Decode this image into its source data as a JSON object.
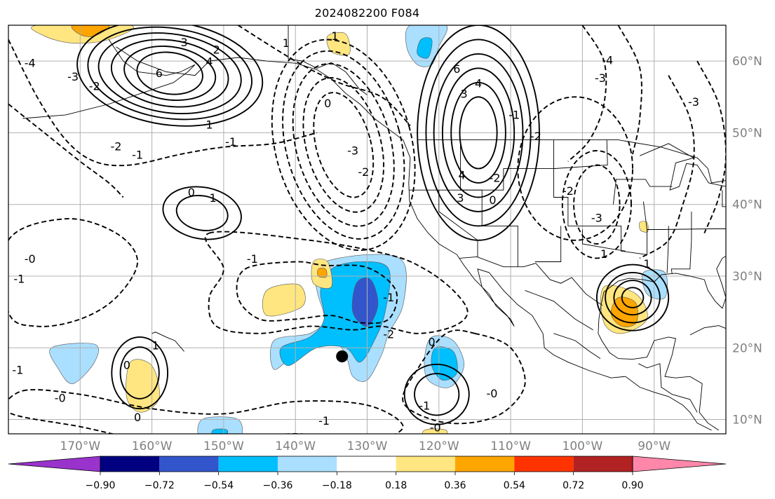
{
  "title": "2024082200 F084",
  "map": {
    "lon_range": [
      -180,
      -80
    ],
    "lat_range": [
      8,
      65
    ],
    "lat_ticks": [
      {
        "value": 60,
        "label": "60°N"
      },
      {
        "value": 50,
        "label": "50°N"
      },
      {
        "value": 40,
        "label": "40°N"
      },
      {
        "value": 30,
        "label": "30°N"
      },
      {
        "value": 20,
        "label": "20°N"
      },
      {
        "value": 10,
        "label": "10°N"
      }
    ],
    "lon_ticks": [
      {
        "value": -170,
        "label": "170°W"
      },
      {
        "value": -160,
        "label": "160°W"
      },
      {
        "value": -150,
        "label": "150°W"
      },
      {
        "value": -140,
        "label": "140°W"
      },
      {
        "value": -130,
        "label": "130°W"
      },
      {
        "value": -120,
        "label": "120°W"
      },
      {
        "value": -110,
        "label": "110°W"
      },
      {
        "value": -100,
        "label": "100°W"
      },
      {
        "value": -90,
        "label": "90°W"
      }
    ],
    "storm_marker": {
      "lon": -133.5,
      "lat": 18.8
    }
  },
  "colorbar": {
    "colors": [
      "#9933cc",
      "#000080",
      "#3355cc",
      "#00bfff",
      "#aadfff",
      "#ffffff",
      "#ffe680",
      "#ffa500",
      "#ff3300",
      "#b22222",
      "#ff88aa"
    ],
    "tick_labels": [
      "−0.90",
      "−0.72",
      "−0.54",
      "−0.36",
      "−0.18",
      "0.18",
      "0.36",
      "0.54",
      "0.72",
      "0.90"
    ]
  },
  "contour_labels": [
    {
      "text": "3",
      "lon": -155.5,
      "lat": 62.5
    },
    {
      "text": "2",
      "lon": -151,
      "lat": 61.5
    },
    {
      "text": "6",
      "lon": -159,
      "lat": 58.2
    },
    {
      "text": "4",
      "lon": -152,
      "lat": 59.8
    },
    {
      "text": "-4",
      "lon": -177,
      "lat": 59.6
    },
    {
      "text": "-3",
      "lon": -171,
      "lat": 57.7
    },
    {
      "text": "-2",
      "lon": -168,
      "lat": 56.4
    },
    {
      "text": "-2",
      "lon": -165,
      "lat": 48
    },
    {
      "text": "-1",
      "lon": -162,
      "lat": 46.8
    },
    {
      "text": "1",
      "lon": -152,
      "lat": 51
    },
    {
      "text": "1",
      "lon": -141.3,
      "lat": 62.4
    },
    {
      "text": "0",
      "lon": -135.5,
      "lat": 54
    },
    {
      "text": "-1",
      "lon": -149,
      "lat": 48.6
    },
    {
      "text": "-3",
      "lon": -132,
      "lat": 47.4
    },
    {
      "text": "-2",
      "lon": -130.5,
      "lat": 44.4
    },
    {
      "text": "0",
      "lon": -154.5,
      "lat": 41.6
    },
    {
      "text": "1",
      "lon": -151.5,
      "lat": 40.8
    },
    {
      "text": "-1",
      "lon": -146,
      "lat": 32.3
    },
    {
      "text": "-0",
      "lon": -177,
      "lat": 32.3
    },
    {
      "text": "-1",
      "lon": -178.5,
      "lat": 29.5
    },
    {
      "text": "6",
      "lon": -117.5,
      "lat": 58.8
    },
    {
      "text": "4",
      "lon": -114.5,
      "lat": 56.8
    },
    {
      "text": "3",
      "lon": -116.5,
      "lat": 55.3
    },
    {
      "text": "-4",
      "lon": -96.5,
      "lat": 60
    },
    {
      "text": "-3",
      "lon": -97.5,
      "lat": 57.5
    },
    {
      "text": "-2",
      "lon": -106.5,
      "lat": 49.4
    },
    {
      "text": "-1",
      "lon": -109.5,
      "lat": 52.4
    },
    {
      "text": "4",
      "lon": -116.8,
      "lat": 44
    },
    {
      "text": "3",
      "lon": -117,
      "lat": 40.8
    },
    {
      "text": "0",
      "lon": -112.5,
      "lat": 40.5
    },
    {
      "text": "-2",
      "lon": -112.2,
      "lat": 43.6
    },
    {
      "text": "-2",
      "lon": -102,
      "lat": 41.8
    },
    {
      "text": "-3",
      "lon": -84.5,
      "lat": 54.2
    },
    {
      "text": "-3",
      "lon": -98,
      "lat": 38
    },
    {
      "text": "1",
      "lon": -97,
      "lat": 33
    },
    {
      "text": "1",
      "lon": -91,
      "lat": 31.6
    },
    {
      "text": "-1",
      "lon": -127,
      "lat": 26.9
    },
    {
      "text": "-2",
      "lon": -127,
      "lat": 21.8
    },
    {
      "text": "0",
      "lon": -121,
      "lat": 20.7
    },
    {
      "text": "-0",
      "lon": -112.6,
      "lat": 13.5
    },
    {
      "text": "-0",
      "lon": -120.5,
      "lat": 8.8
    },
    {
      "text": "-1",
      "lon": -122,
      "lat": 11.8
    },
    {
      "text": "-1",
      "lon": -136,
      "lat": 9.7
    },
    {
      "text": "1",
      "lon": -159.5,
      "lat": 20.2
    },
    {
      "text": "0",
      "lon": -163.5,
      "lat": 17.5
    },
    {
      "text": "-0",
      "lon": -172.8,
      "lat": 12.9
    },
    {
      "text": "0",
      "lon": -162,
      "lat": 10.2
    },
    {
      "text": "-1",
      "lon": -178.7,
      "lat": 16.8
    },
    {
      "text": "1",
      "lon": -134.5,
      "lat": 63.4
    }
  ]
}
